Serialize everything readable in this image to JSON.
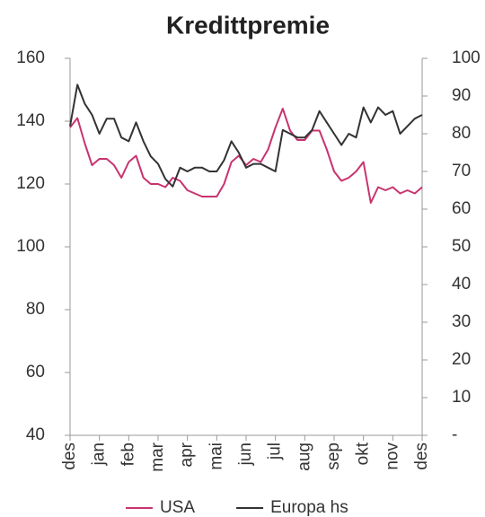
{
  "chart_data": {
    "type": "line",
    "title": "Kredittpremie",
    "x": [
      0,
      0.25,
      0.5,
      0.75,
      1,
      1.25,
      1.5,
      1.75,
      2,
      2.25,
      2.5,
      2.75,
      3,
      3.25,
      3.5,
      3.75,
      4,
      4.25,
      4.5,
      4.75,
      5,
      5.25,
      5.5,
      5.75,
      6,
      6.25,
      6.5,
      6.75,
      7,
      7.25,
      7.5,
      7.75,
      8,
      8.25,
      8.5,
      8.75,
      9,
      9.25,
      9.5,
      9.75,
      10,
      10.25,
      10.5,
      10.75,
      11,
      11.25,
      11.5,
      11.75,
      12
    ],
    "xlim": [
      0,
      12
    ],
    "xticks": [
      {
        "value": 0,
        "label": "des"
      },
      {
        "value": 1,
        "label": "jan"
      },
      {
        "value": 2,
        "label": "feb"
      },
      {
        "value": 3,
        "label": "mar"
      },
      {
        "value": 4,
        "label": "apr"
      },
      {
        "value": 5,
        "label": "mai"
      },
      {
        "value": 6,
        "label": "jun"
      },
      {
        "value": 7,
        "label": "jul"
      },
      {
        "value": 8,
        "label": "aug"
      },
      {
        "value": 9,
        "label": "sep"
      },
      {
        "value": 10,
        "label": "okt"
      },
      {
        "value": 11,
        "label": "nov"
      },
      {
        "value": 12,
        "label": "des"
      }
    ],
    "ylim": [
      40,
      160
    ],
    "yticks": [
      40,
      60,
      80,
      100,
      120,
      140,
      160
    ],
    "y2lim": [
      0,
      100
    ],
    "y2ticks": [
      {
        "value": 0,
        "label": "-"
      },
      10,
      20,
      30,
      40,
      50,
      60,
      70,
      80,
      90,
      100
    ],
    "grid": false,
    "legend": "bottom",
    "series": [
      {
        "name": "USA",
        "color": "#c8336f",
        "values": [
          138,
          141,
          133,
          126,
          128,
          128,
          126,
          122,
          127,
          129,
          122,
          120,
          120,
          119,
          122,
          121,
          118,
          117,
          116,
          116,
          116,
          120,
          127,
          129,
          126,
          128,
          127,
          131,
          138,
          144,
          137,
          134,
          134,
          137,
          137,
          131,
          124,
          121,
          122,
          124,
          127,
          114,
          119,
          118,
          119,
          117,
          118,
          117,
          119
        ]
      },
      {
        "name": "Europa hs",
        "color": "#333333",
        "axis": "y2",
        "values": [
          82,
          93,
          88,
          85,
          80,
          84,
          84,
          79,
          78,
          83,
          78,
          74,
          72,
          68,
          66,
          71,
          70,
          71,
          71,
          70,
          70,
          73,
          78,
          75,
          71,
          72,
          72,
          71,
          70,
          81,
          80,
          79,
          79,
          81,
          86,
          83,
          80,
          77,
          80,
          79,
          87,
          83,
          87,
          85,
          86,
          80,
          82,
          84,
          85
        ]
      }
    ]
  }
}
